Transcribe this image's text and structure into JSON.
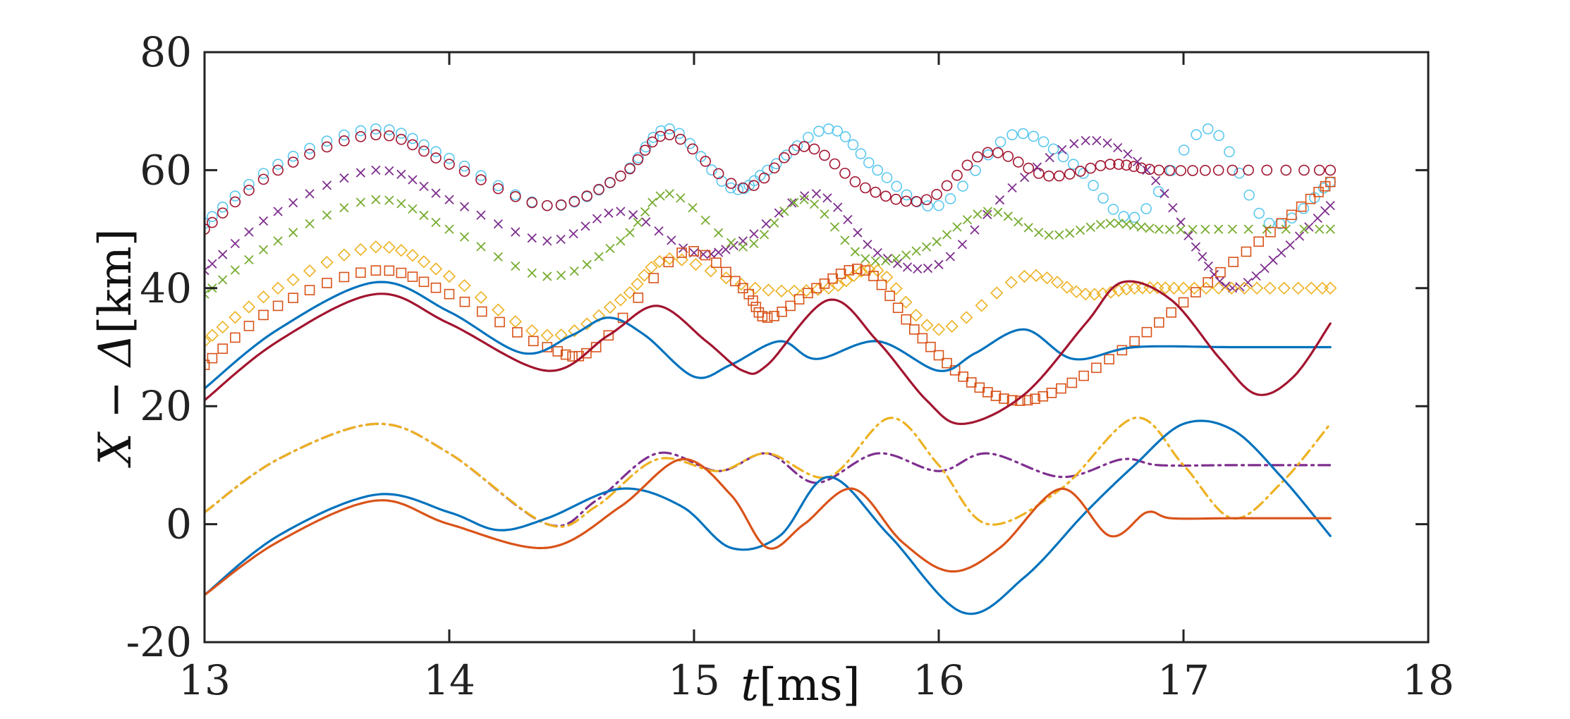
{
  "chart_data": {
    "type": "line",
    "title": "",
    "xlabel_var": "t",
    "xlabel_unit": "[ms]",
    "ylabel_var": "X − Δ",
    "ylabel_unit": "[km]",
    "xlim": [
      13,
      18
    ],
    "ylim": [
      -20,
      80
    ],
    "xticks": [
      "13",
      "14",
      "15",
      "16",
      "17",
      "18"
    ],
    "yticks": [
      "-20",
      "0",
      "20",
      "40",
      "60",
      "80"
    ],
    "grid": false,
    "legend": "none",
    "series": [
      {
        "name": "light-blue-circles",
        "color": "#5bc8ef",
        "style": "marker",
        "marker": "circle",
        "x": [
          13,
          13.3,
          13.7,
          14.0,
          14.4,
          14.7,
          14.9,
          15.15,
          15.3,
          15.55,
          15.75,
          16.0,
          16.3,
          16.55,
          16.8,
          17.1,
          17.35,
          17.6
        ],
        "y": [
          51,
          61,
          67,
          62,
          54,
          59,
          67,
          57,
          60,
          67,
          60,
          54,
          66,
          61,
          52,
          67,
          51,
          58
        ]
      },
      {
        "name": "dark-red-circles",
        "color": "#a2142f",
        "style": "marker",
        "marker": "circle",
        "x": [
          13,
          13.3,
          13.7,
          14.0,
          14.4,
          14.7,
          14.9,
          15.2,
          15.45,
          15.7,
          15.95,
          16.2,
          16.45,
          16.7,
          16.9,
          17.2,
          17.6
        ],
        "y": [
          50,
          60,
          66,
          61,
          54,
          59,
          66,
          57,
          64,
          57,
          55,
          63,
          59,
          61,
          60,
          60,
          60
        ]
      },
      {
        "name": "purple-crosses",
        "color": "#7e2f8e",
        "style": "marker",
        "marker": "x",
        "x": [
          13,
          13.3,
          13.7,
          14.0,
          14.4,
          14.7,
          15.0,
          15.2,
          15.5,
          15.75,
          16.0,
          16.3,
          16.6,
          16.85,
          17.05,
          17.2,
          17.4,
          17.6
        ],
        "y": [
          43,
          53,
          60,
          55,
          48,
          53,
          46,
          48,
          56,
          46,
          44,
          57,
          65,
          60,
          47,
          40,
          46,
          54
        ]
      },
      {
        "name": "green-crosses",
        "color": "#77ac30",
        "style": "marker",
        "marker": "x",
        "x": [
          13,
          13.3,
          13.7,
          14.0,
          14.4,
          14.7,
          14.9,
          15.2,
          15.45,
          15.7,
          15.95,
          16.2,
          16.45,
          16.7,
          16.9,
          17.2,
          17.6
        ],
        "y": [
          39,
          48,
          55,
          50,
          42,
          48,
          56,
          47,
          55,
          45,
          47,
          53,
          49,
          51,
          50,
          50,
          50
        ]
      },
      {
        "name": "yellow-diamonds",
        "color": "#edb120",
        "style": "marker",
        "marker": "diamond",
        "x": [
          13,
          13.3,
          13.7,
          14.0,
          14.4,
          14.7,
          14.9,
          15.25,
          15.55,
          15.75,
          16.0,
          16.35,
          16.6,
          16.8,
          17.0,
          17.3,
          17.6
        ],
        "y": [
          31,
          40,
          47,
          42,
          32,
          38,
          45,
          40,
          40,
          43,
          33,
          42,
          39,
          40,
          40,
          40,
          40
        ]
      },
      {
        "name": "orange-squares",
        "color": "#d95319",
        "style": "marker",
        "marker": "square",
        "x": [
          13,
          13.3,
          13.7,
          14.0,
          14.4,
          14.6,
          14.95,
          15.2,
          15.3,
          15.5,
          15.7,
          15.9,
          16.1,
          16.3,
          16.5,
          16.8,
          17.1,
          17.4,
          17.6
        ],
        "y": [
          27,
          37,
          43,
          39,
          30,
          30,
          46,
          40,
          35,
          40,
          43,
          33,
          25,
          21,
          23,
          31,
          41,
          51,
          58
        ]
      },
      {
        "name": "blue-solid-upper",
        "color": "#0072bd",
        "style": "line",
        "x": [
          13,
          13.3,
          13.7,
          14.0,
          14.3,
          14.5,
          14.65,
          14.8,
          15.0,
          15.15,
          15.35,
          15.5,
          15.75,
          16.0,
          16.15,
          16.35,
          16.55,
          16.8,
          17.2,
          17.6
        ],
        "y": [
          23,
          33,
          41,
          36,
          29,
          32,
          35,
          32,
          25,
          27,
          31,
          28,
          31,
          26,
          29,
          33,
          28,
          30,
          30,
          30
        ]
      },
      {
        "name": "dark-red-solid-upper",
        "color": "#a2142f",
        "style": "line",
        "x": [
          13,
          13.3,
          13.7,
          14.0,
          14.4,
          14.65,
          14.85,
          15.05,
          15.2,
          15.3,
          15.55,
          15.75,
          15.95,
          16.1,
          16.35,
          16.6,
          16.75,
          16.95,
          17.15,
          17.3,
          17.45,
          17.6
        ],
        "y": [
          21,
          31,
          39,
          34,
          26,
          32,
          37,
          31,
          26,
          27,
          38,
          31,
          21,
          17,
          22,
          34,
          41,
          38,
          28,
          22,
          25,
          34
        ]
      },
      {
        "name": "purple-dashdot",
        "color": "#7e2f8e",
        "style": "dashdot",
        "x": [
          13,
          13.3,
          13.7,
          14.0,
          14.4,
          14.6,
          14.85,
          15.1,
          15.3,
          15.5,
          15.75,
          16.0,
          16.2,
          16.5,
          16.75,
          16.9,
          17.2,
          17.6
        ],
        "y": [
          2,
          11,
          17,
          12,
          0,
          4,
          12,
          9,
          12,
          7,
          12,
          9,
          12,
          8,
          11,
          10,
          10,
          10
        ]
      },
      {
        "name": "yellow-dashdot",
        "color": "#edb120",
        "style": "dashdot",
        "x": [
          13,
          13.3,
          13.7,
          14.0,
          14.4,
          14.6,
          14.85,
          15.1,
          15.3,
          15.55,
          15.8,
          16.0,
          16.2,
          16.5,
          16.8,
          17.0,
          17.2,
          17.4,
          17.6
        ],
        "y": [
          2,
          11,
          17,
          12,
          0,
          3,
          11,
          9,
          12,
          8,
          18,
          10,
          0,
          6,
          18,
          10,
          1,
          7,
          17
        ]
      },
      {
        "name": "blue-solid-lower",
        "color": "#0072bd",
        "style": "line",
        "x": [
          13,
          13.3,
          13.7,
          14.0,
          14.2,
          14.4,
          14.7,
          14.95,
          15.15,
          15.35,
          15.55,
          15.8,
          16.1,
          16.35,
          16.6,
          16.8,
          17.0,
          17.2,
          17.4,
          17.6
        ],
        "y": [
          -12,
          -2,
          5,
          2,
          -1,
          1,
          6,
          3,
          -4,
          -2,
          8,
          -2,
          -15,
          -9,
          2,
          10,
          17,
          16,
          8,
          -2
        ]
      },
      {
        "name": "orange-solid-lower",
        "color": "#d95319",
        "style": "line",
        "x": [
          13,
          13.3,
          13.7,
          14.0,
          14.4,
          14.7,
          14.95,
          15.15,
          15.3,
          15.45,
          15.65,
          15.85,
          16.05,
          16.25,
          16.5,
          16.7,
          16.85,
          16.95,
          17.2,
          17.6
        ],
        "y": [
          -12,
          -3,
          4,
          0,
          -4,
          3,
          11,
          5,
          -4,
          0,
          6,
          -3,
          -8,
          -4,
          6,
          -2,
          2,
          1,
          1,
          1
        ]
      }
    ]
  }
}
